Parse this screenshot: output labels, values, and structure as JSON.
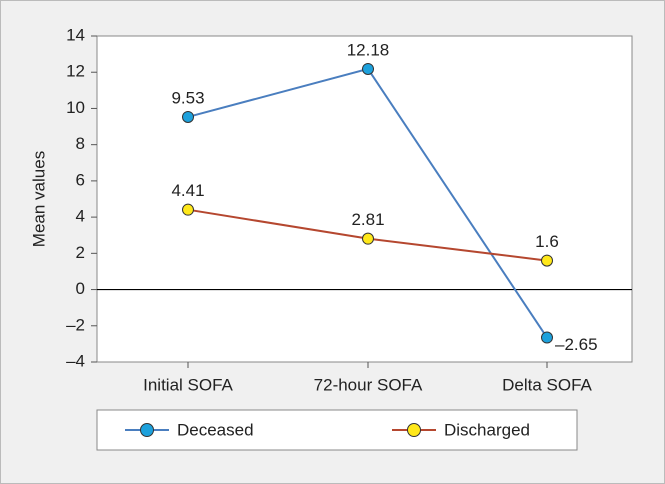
{
  "chart_data": {
    "type": "line",
    "y_label": "Mean values",
    "categories": [
      "Initial SOFA",
      "72-hour SOFA",
      "Delta SOFA"
    ],
    "series": [
      {
        "name": "Deceased",
        "color": "#4a7ebf",
        "marker_color": "#1da1dc",
        "values": [
          9.53,
          12.18,
          -2.65
        ],
        "value_labels": [
          "9.53",
          "12.18",
          "–2.65"
        ]
      },
      {
        "name": "Discharged",
        "color": "#b5472f",
        "marker_color": "#ffe81a",
        "values": [
          4.41,
          2.81,
          1.6
        ],
        "value_labels": [
          "4.41",
          "2.81",
          "1.6"
        ]
      }
    ],
    "ylim": [
      -4,
      14
    ],
    "yticks": [
      {
        "value": -4,
        "label": "–4"
      },
      {
        "value": -2,
        "label": "–2"
      },
      0,
      2,
      4,
      6,
      8,
      10,
      12,
      14
    ],
    "zero_line": true
  }
}
